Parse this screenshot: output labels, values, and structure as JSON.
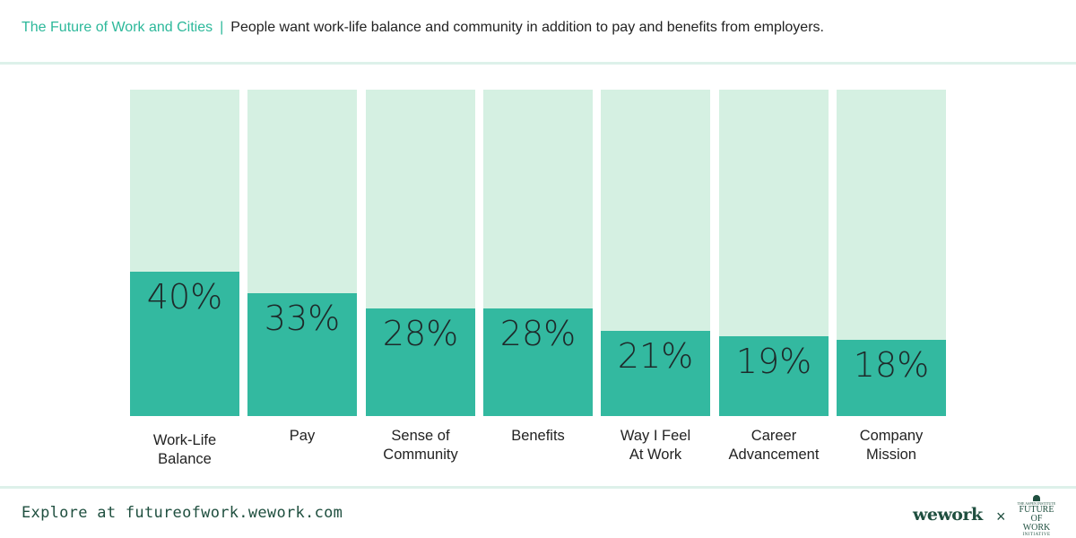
{
  "header": {
    "series_title": "The Future of Work and Cities",
    "separator": "|",
    "headline": "People want work-life balance and community in addition to pay and benefits from employers."
  },
  "chart_data": {
    "type": "bar",
    "title": "People want work-life balance and community in addition to pay and benefits from employers.",
    "categories": [
      "Work-Life\nBalance",
      "Pay",
      "Sense of\nCommunity",
      "Benefits",
      "Way I Feel\nAt Work",
      "Career\nAdvancement",
      "Company\nMission"
    ],
    "values": [
      40,
      33,
      28,
      28,
      21,
      19,
      18
    ],
    "value_labels": [
      "40%",
      "33%",
      "28%",
      "28%",
      "21%",
      "19%",
      "18%"
    ],
    "unit": "%",
    "ylim": [
      0,
      100
    ],
    "grid": false,
    "colors": {
      "bar": "#33b9a0",
      "background_bar": "#d5f0e2"
    }
  },
  "footer": {
    "link_text": "Explore at futureofwork.wework.com",
    "logo_wework": "wework",
    "times": "×",
    "logo_aspen_small": "THE ASPEN INSTITUTE",
    "logo_aspen_line1": "FUTURE OF",
    "logo_aspen_line2": "WORK",
    "logo_aspen_line3": "INITIATIVE"
  },
  "colors": {
    "accent": "#2cb89a",
    "brand_dark": "#1f4f3f"
  }
}
